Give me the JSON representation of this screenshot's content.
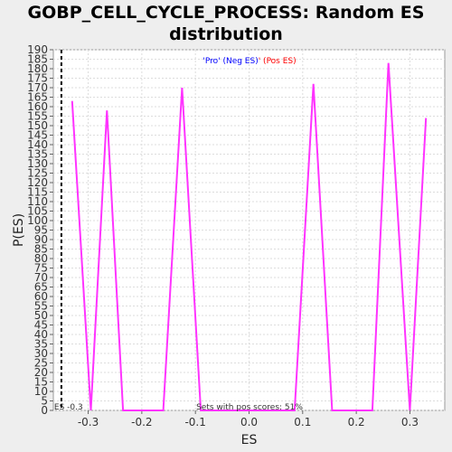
{
  "chart_data": {
    "type": "line",
    "title_line1": "GOBP_CELL_CYCLE_PROCESS: Random ES",
    "title_line2": "distribution",
    "xlabel": "ES",
    "ylabel": "P(ES)",
    "xlim": [
      -0.365,
      0.365
    ],
    "ylim": [
      0,
      190
    ],
    "xticks": [
      -0.3,
      -0.2,
      -0.1,
      0.0,
      0.1,
      0.2,
      0.3
    ],
    "xtick_labels": [
      "-0.3",
      "-0.2",
      "-0.1",
      "0.0",
      "0.1",
      "0.2",
      "0.3"
    ],
    "yticks": [
      0,
      5,
      10,
      15,
      20,
      25,
      30,
      35,
      40,
      45,
      50,
      55,
      60,
      65,
      70,
      75,
      80,
      85,
      90,
      95,
      100,
      105,
      110,
      115,
      120,
      125,
      130,
      135,
      140,
      145,
      150,
      155,
      160,
      165,
      170,
      175,
      180,
      185,
      190
    ],
    "grid": true,
    "series": [
      {
        "color": "#ff33ff",
        "x": [
          -0.33,
          -0.295,
          -0.265,
          -0.235,
          -0.225,
          -0.16,
          -0.125,
          -0.09,
          0.085,
          0.12,
          0.155,
          0.23,
          0.26,
          0.3,
          0.33
        ],
        "y": [
          163,
          0,
          158,
          0,
          0,
          0,
          170,
          0,
          0,
          172,
          0,
          0,
          183,
          0,
          154
        ]
      }
    ],
    "es_marker": {
      "x": -0.35,
      "label": "ES -0.3"
    },
    "legend": {
      "neg_label": "'Pro' (Neg ES)",
      "pos_label": "' (Pos ES)",
      "neg_color": "#0000ff",
      "pos_color": "#ff0000"
    },
    "footer_note": "Sets with pos scores: 51%"
  }
}
